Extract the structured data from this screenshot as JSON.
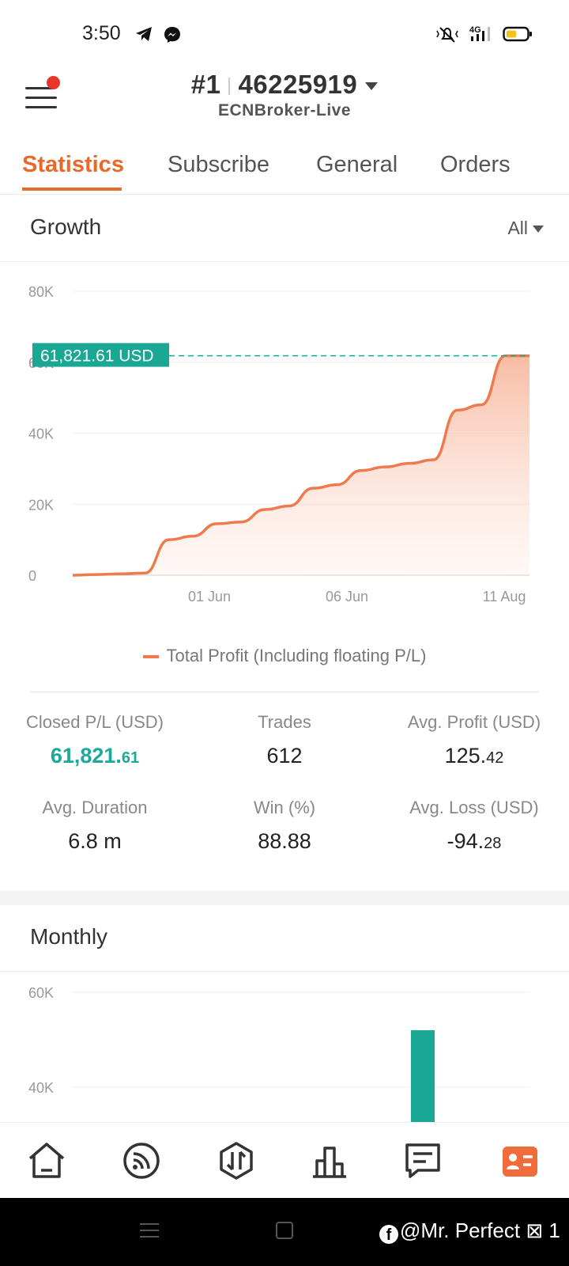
{
  "status_bar": {
    "time": "3:50",
    "left_icons": [
      "telegram-icon",
      "messenger-icon"
    ],
    "right_icons": [
      "mute-icon",
      "signal-4g-icon",
      "battery-icon"
    ],
    "network": "4G"
  },
  "header": {
    "account_rank": "#1",
    "account_number": "46225919",
    "server": "ECNBroker-Live"
  },
  "tabs": [
    {
      "label": "Statistics",
      "active": true
    },
    {
      "label": "Subscribe",
      "active": false
    },
    {
      "label": "General",
      "active": false
    },
    {
      "label": "Orders",
      "active": false
    }
  ],
  "growth": {
    "title": "Growth",
    "range": "All",
    "current_value_label": "61,821.61 USD",
    "legend": "Total Profit (Including floating P/L)"
  },
  "chart_data": [
    {
      "type": "area",
      "title": "Growth",
      "xlabel": "",
      "ylabel": "",
      "x_ticks": [
        "01 Jun",
        "06 Jun",
        "11 Aug"
      ],
      "y_ticks": [
        "0",
        "20K",
        "40K",
        "60K",
        "80K"
      ],
      "ylim": [
        0,
        80000
      ],
      "grid": true,
      "series": [
        {
          "name": "Total Profit (Including floating P/L)",
          "color": "#ee7a4e",
          "values": [
            0,
            200,
            400,
            600,
            10000,
            11000,
            14500,
            15000,
            18500,
            19500,
            24500,
            25500,
            29500,
            30500,
            31500,
            32500,
            46500,
            48000,
            61821.61,
            61821.61
          ]
        }
      ],
      "marker_value": 61821.61,
      "marker_label": "61,821.61 USD"
    },
    {
      "type": "bar",
      "title": "Monthly",
      "y_ticks": [
        "40K",
        "60K"
      ],
      "ylim": [
        0,
        60000
      ],
      "grid": true,
      "series": [
        {
          "color": "#1aa894",
          "values": [
            52000
          ]
        }
      ]
    }
  ],
  "stats": {
    "closed_pl_label": "Closed P/L (USD)",
    "closed_pl_int": "61,821.",
    "closed_pl_dec": "61",
    "trades_label": "Trades",
    "trades_value": "612",
    "avg_profit_label": "Avg. Profit (USD)",
    "avg_profit_int": "125.",
    "avg_profit_dec": "42",
    "avg_duration_label": "Avg. Duration",
    "avg_duration_value": "6.8 m",
    "win_label": "Win (%)",
    "win_value": "88.88",
    "avg_loss_label": "Avg. Loss (USD)",
    "avg_loss_int": "-94.",
    "avg_loss_dec": "28"
  },
  "monthly": {
    "title": "Monthly"
  },
  "bottom_nav": {
    "items": [
      "home-icon",
      "feed-icon",
      "trade-icon",
      "chart-icon",
      "messages-icon",
      "profile-card-icon"
    ],
    "active": "profile-card-icon",
    "accent": "#f26b3a"
  },
  "watermark": {
    "text": "@Mr. Perfect ⊠ 1"
  },
  "colors": {
    "accent_orange": "#e8692b",
    "green": "#1ba99a"
  }
}
